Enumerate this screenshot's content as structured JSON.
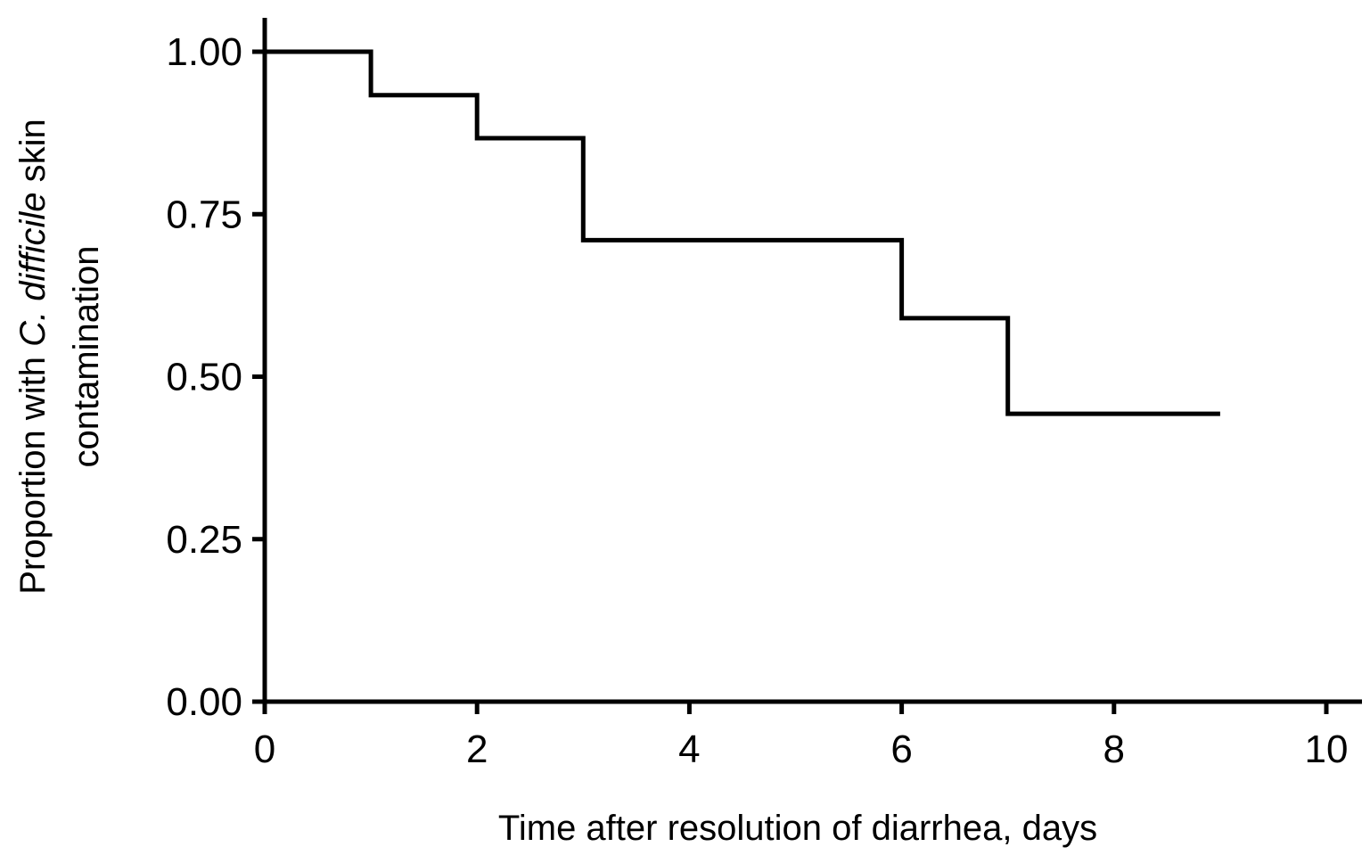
{
  "chart_data": {
    "type": "line",
    "step": true,
    "xlabel": "Time after resolution of diarrhea, days",
    "ylabel": {
      "line1_prefix": "Proportion with ",
      "line1_italic": "C. difficile",
      "line1_suffix": " skin",
      "line2": "contamination"
    },
    "xlim": [
      0,
      10
    ],
    "ylim": [
      0,
      1
    ],
    "xticks": [
      0,
      2,
      4,
      6,
      8,
      10
    ],
    "xtick_labels": [
      "0",
      "2",
      "4",
      "6",
      "8",
      "10"
    ],
    "yticks": [
      0,
      0.25,
      0.5,
      0.75,
      1.0
    ],
    "ytick_labels": [
      "0.00",
      "0.25",
      "0.50",
      "0.75",
      "1.00"
    ],
    "grid": false,
    "series": [
      {
        "x": [
          0,
          1,
          2,
          3,
          6,
          7,
          9
        ],
        "y": [
          1.0,
          0.933,
          0.867,
          0.71,
          0.59,
          0.443,
          0.443
        ]
      }
    ]
  }
}
